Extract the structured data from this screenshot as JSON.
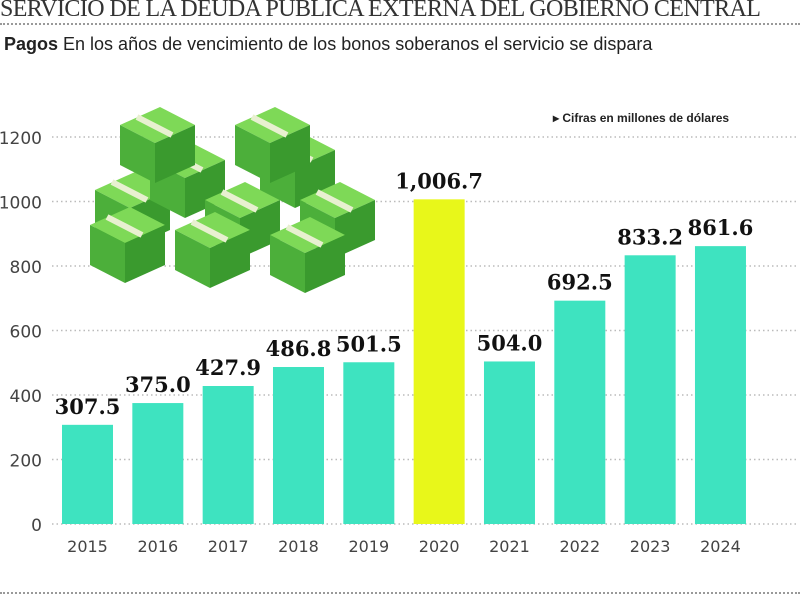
{
  "header": {
    "title": "SERVICIO DE LA DEUDA PÚBLICA EXTERNA DEL GOBIERNO CENTRAL",
    "subtitle_bold": "Pagos",
    "subtitle": "En los años de vencimiento de los bonos soberanos el servicio se dispara"
  },
  "chart_data": {
    "type": "bar",
    "title": "",
    "note": "Cifras en millones de dólares",
    "categories": [
      "2015",
      "2016",
      "2017",
      "2018",
      "2019",
      "2020",
      "2021",
      "2022",
      "2023",
      "2024"
    ],
    "values": [
      307.5,
      375.0,
      427.9,
      486.8,
      501.5,
      1006.7,
      504.0,
      692.5,
      833.2,
      861.6
    ],
    "data_labels": [
      "307.5",
      "375.0",
      "427.9",
      "486.8",
      "501.5",
      "1,006.7",
      "504.0",
      "692.5",
      "833.2",
      "861.6"
    ],
    "ylim": [
      0,
      1200
    ],
    "yticks": [
      0,
      200,
      400,
      600,
      800,
      1000,
      1200
    ],
    "grid": true,
    "colors": {
      "default": "#3ee3c0",
      "highlight": "#e8f71a"
    },
    "highlight_category": "2020",
    "illustration": "money-stacks"
  }
}
